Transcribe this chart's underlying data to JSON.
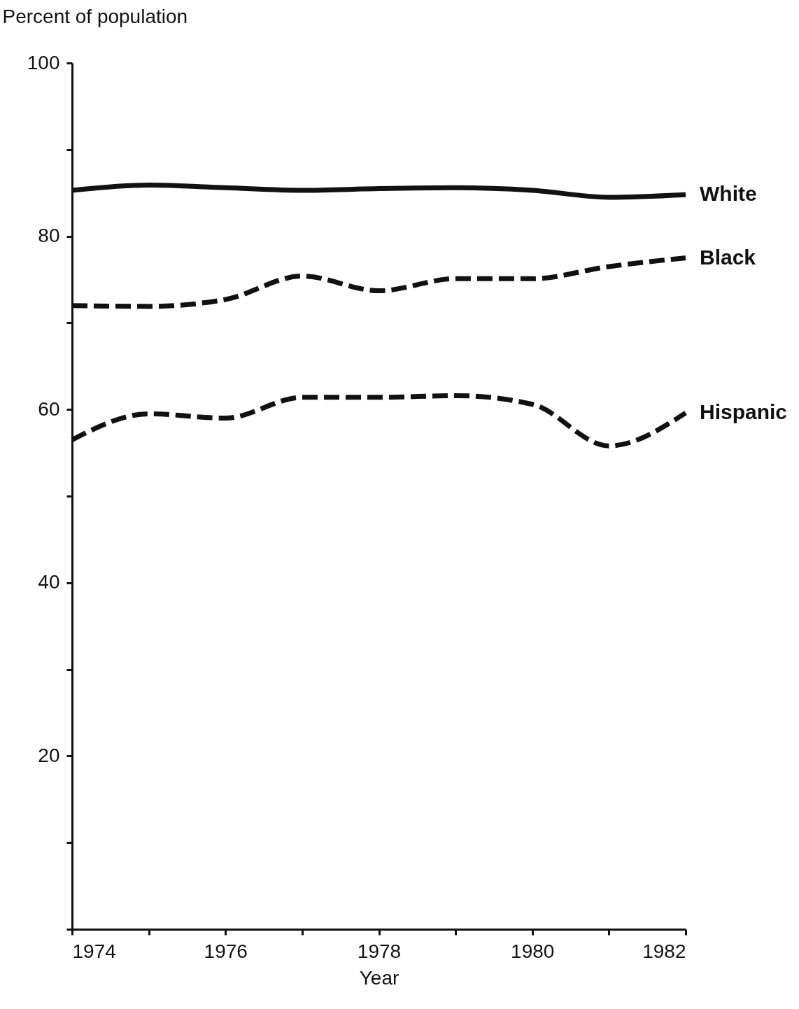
{
  "chart_data": {
    "type": "line",
    "xlabel": "Year",
    "ylabel": "Percent of population",
    "x": [
      1974,
      1975,
      1976,
      1977,
      1978,
      1979,
      1980,
      1981,
      1982
    ],
    "series": [
      {
        "name": "White",
        "color": "#111111",
        "line_style": "solid",
        "values": [
          85.3,
          85.9,
          85.6,
          85.3,
          85.5,
          85.6,
          85.3,
          84.5,
          84.8
        ]
      },
      {
        "name": "Black",
        "color": "#111111",
        "line_style": "dashed",
        "values": [
          72.0,
          71.9,
          72.7,
          75.4,
          73.7,
          75.1,
          75.1,
          76.5,
          77.5
        ]
      },
      {
        "name": "Hispanic",
        "color": "#111111",
        "line_style": "dashed",
        "values": [
          56.5,
          59.5,
          59.0,
          61.4,
          61.4,
          61.6,
          60.6,
          55.8,
          59.6
        ]
      }
    ],
    "xlim": [
      1974,
      1982
    ],
    "xticks": [
      1974,
      {
        "value": 1975,
        "label": null
      },
      1976,
      {
        "value": 1977,
        "label": null
      },
      1978,
      {
        "value": 1979,
        "label": null
      },
      1980,
      {
        "value": 1981,
        "label": null
      },
      1982
    ],
    "ylim": [
      0,
      100
    ],
    "yticks": [
      {
        "value": 0,
        "label": null
      },
      {
        "value": 10,
        "label": null
      },
      20,
      {
        "value": 30,
        "label": null
      },
      40,
      {
        "value": 50,
        "label": null
      },
      60,
      {
        "value": 70,
        "label": null
      },
      80,
      {
        "value": 90,
        "label": null
      },
      100
    ],
    "grid": false,
    "legend": false,
    "marker": "none"
  }
}
